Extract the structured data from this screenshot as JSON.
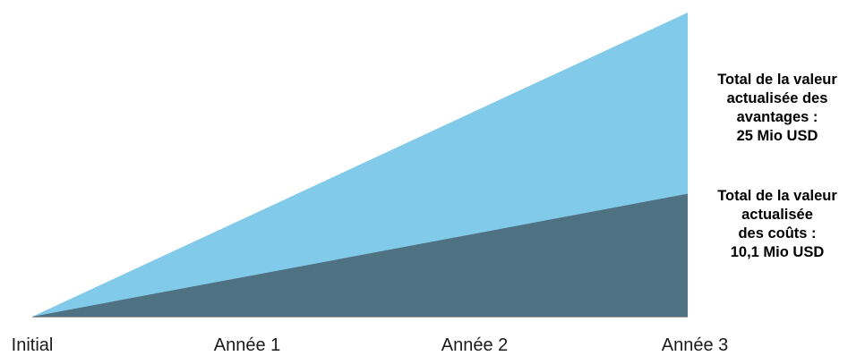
{
  "chart_data": {
    "type": "area",
    "categories": [
      "Initial",
      "Année 1",
      "Année 2",
      "Année 3"
    ],
    "x": [
      0,
      1,
      2,
      3
    ],
    "series": [
      {
        "values": [
          0,
          8.33,
          16.67,
          25
        ],
        "color": "#82caea"
      },
      {
        "values": [
          0,
          3.37,
          6.73,
          10.1
        ],
        "color": "#4f7282"
      }
    ],
    "ylim": [
      0,
      25
    ],
    "grid": false,
    "annotations": {
      "benefits": [
        "Total de la valeur",
        "actualisée des",
        "avantages :",
        "25 Mio USD"
      ],
      "costs": [
        "Total de la valeur",
        "actualisée",
        "des coûts :",
        "10,1 Mio USD"
      ]
    }
  }
}
